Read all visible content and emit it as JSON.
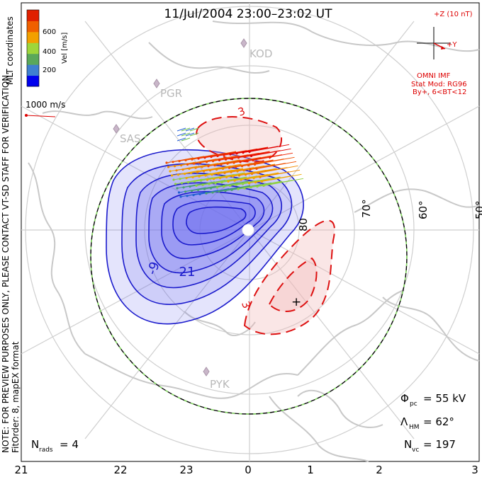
{
  "title": "11/Jul/2004 23:00–23:02 UT",
  "side_note_1": "NOTE: FOR PREVIEW PURPOSES ONLY, PLEASE CONTACT VT-SD STAFF FOR VERIFICATION.",
  "side_note_2": "FitOrder: 8, mapEX format",
  "coords_label": "MLT coordinates",
  "colorbar": {
    "title": "Vel [m/s]",
    "ticks": [
      "600",
      "400",
      "200"
    ],
    "colors": [
      "#0000ee",
      "#3f7fd0",
      "#5aa85a",
      "#9ed63a",
      "#f2a000",
      "#f06000",
      "#e02000"
    ]
  },
  "ref_vector_label": "1000 m/s",
  "imf": {
    "z_label": "+Z (10 nT)",
    "y_label": "+Y",
    "source": "OMNI IMF",
    "model_1": "Stat Mod: RG96",
    "model_2": "By+, 6<BT<12"
  },
  "stations": [
    "KOD",
    "PGR",
    "SAS",
    "PYK"
  ],
  "latitude_labels": [
    "80",
    "70°",
    "60°",
    "50°"
  ],
  "contour_labels": [
    "-21",
    "-9",
    "3",
    "3",
    "+"
  ],
  "stats": {
    "phi_label": "Φ",
    "phi_sub": "pc",
    "phi_value": "= 55 kV",
    "lambda_label": "Λ",
    "lambda_sub": "HM",
    "lambda_value": "= 62°",
    "nvc_label": "N",
    "nvc_sub": "vc",
    "nvc_value": "= 197",
    "nrads_label": "N",
    "nrads_sub": "rads",
    "nrads_value": "= 4"
  },
  "mlt_labels": [
    "21",
    "22",
    "23",
    "0",
    "1",
    "2",
    "3"
  ],
  "colors": {
    "negative_fill": "#6b6bf0",
    "negative_line": "#1a1acc",
    "positive_fill": "#f0b8b8",
    "positive_line": "#dd1111",
    "map_line": "#c8c8c8",
    "hmb_dash": "#88dd66"
  }
}
